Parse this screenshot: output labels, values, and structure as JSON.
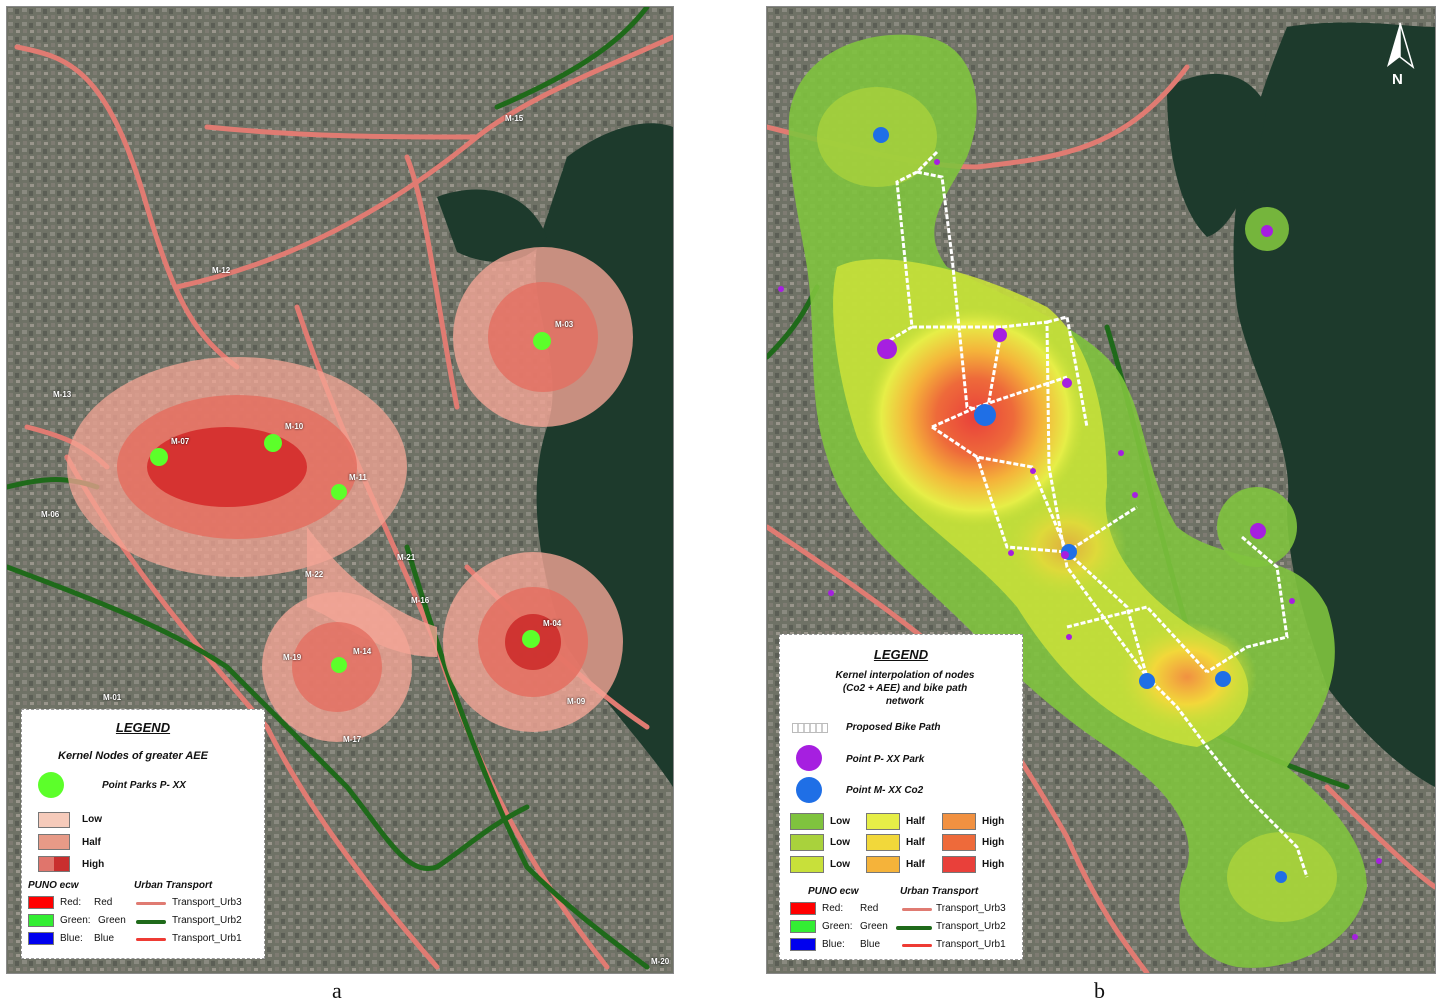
{
  "captions": {
    "a": "a",
    "b": "b"
  },
  "colors": {
    "satellite": "#6b6e62",
    "lake": "#1d3a2c",
    "road_urb3": "#e07b72",
    "road_urb2": "#1f6a1a",
    "road_urb1": "#ee3b34",
    "node_green": "#5cff2a",
    "point_park": "#a61fe0",
    "point_co2": "#1f6fe6",
    "bike_path": "#ffffff"
  },
  "panel_a": {
    "node_labels": [
      "M-07",
      "M-10",
      "M-11",
      "M-03",
      "M-14",
      "M-04",
      "M-19"
    ],
    "road_labels": [
      "M-15",
      "M-12",
      "M-13",
      "M-06",
      "M-21",
      "M-16",
      "M-22",
      "M-17",
      "M-09",
      "M-01",
      "M-20"
    ],
    "legend": {
      "title": "LEGEND",
      "subtitle": "Kernel Nodes of greater AEE",
      "point_label": "Point  Parks P- XX",
      "levels": [
        "Low",
        "Half",
        "High"
      ],
      "level_colors": [
        "#f6cbbb",
        "#e79a87",
        "#d9504a"
      ],
      "raster_title": "PUNO ecw",
      "raster_bands": [
        {
          "name": "Red:",
          "value": "Red",
          "color": "#ff0000"
        },
        {
          "name": "Green:",
          "value": "Green",
          "color": "#33ee33"
        },
        {
          "name": "Blue:",
          "value": "Blue",
          "color": "#0000ee"
        }
      ],
      "transport_title": "Urban Transport",
      "transport_lines": [
        "Transport_Urb3",
        "Transport_Urb2",
        "Transport_Urb1"
      ]
    }
  },
  "panel_b": {
    "north_label": "N",
    "legend": {
      "title": "LEGEND",
      "subtitle": "Kernel interpolation of nodes (Co2 + AEE) and bike path network",
      "bike_label": "Proposed Bike Path",
      "park_label": "Point P- XX Park",
      "co2_label": "Point M- XX Co2",
      "grid": [
        {
          "label": "Low",
          "colors": [
            "#7fc33e",
            "#a9d23c",
            "#c8e03a"
          ]
        },
        {
          "label": "Half",
          "colors": [
            "#e6ee47",
            "#f2d83a",
            "#f5b33a"
          ]
        },
        {
          "label": "High",
          "colors": [
            "#f19141",
            "#ee6a3a",
            "#e9403a"
          ]
        }
      ],
      "raster_title": "PUNO ecw",
      "raster_bands": [
        {
          "name": "Red:",
          "value": "Red",
          "color": "#ff0000"
        },
        {
          "name": "Green:",
          "value": "Green",
          "color": "#33ee33"
        },
        {
          "name": "Blue:",
          "value": "Blue",
          "color": "#0000ee"
        }
      ],
      "transport_title": "Urban Transport",
      "transport_lines": [
        "Transport_Urb3",
        "Transport_Urb2",
        "Transport_Urb1"
      ]
    }
  }
}
